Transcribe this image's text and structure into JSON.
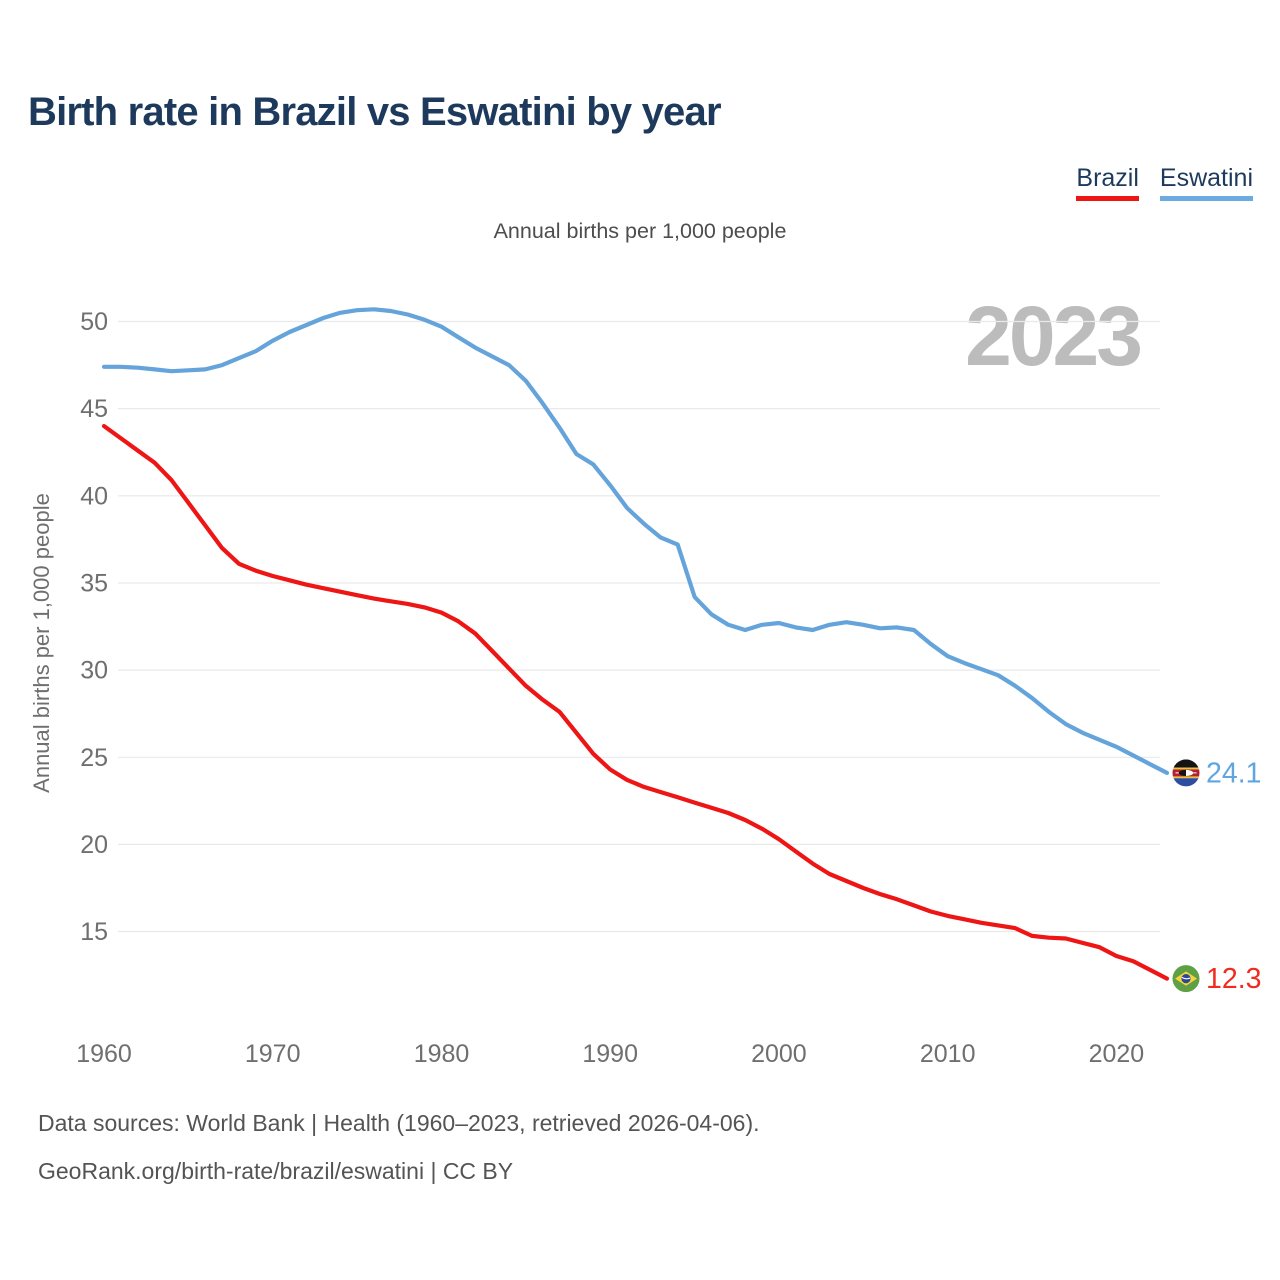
{
  "header": {
    "title": "Birth rate in Brazil vs Eswatini by year",
    "legend": [
      {
        "label": "Brazil",
        "color": "#ee1515"
      },
      {
        "label": "Eswatini",
        "color": "#6babe2"
      }
    ]
  },
  "subtitle": "Annual births per 1,000 people",
  "watermark": "2023",
  "y_axis": {
    "title": "Annual births per 1,000 people",
    "ticks": [
      15,
      20,
      25,
      30,
      35,
      40,
      45,
      50
    ]
  },
  "x_axis": {
    "ticks": [
      1960,
      1970,
      1980,
      1990,
      2000,
      2010,
      2020
    ]
  },
  "footer": {
    "line1": "Data sources: World Bank | Health (1960–2023, retrieved 2026-04-06).",
    "line2": "GeoRank.org/birth-rate/brazil/eswatini | CC BY"
  },
  "theme": {
    "title_navy": "#1d3a5c",
    "gridline": "#e9e9e9",
    "tick_text": "#6f6f6f",
    "watermark_gray": "#bcbcbc"
  },
  "flags": {
    "brazil": {
      "green": "#5fa045",
      "yellow": "#f7d33e",
      "blue": "#2b479a",
      "white": "#ffffff"
    },
    "eswatini": {
      "black": "#141414",
      "yellow": "#f0c030",
      "red": "#b22234",
      "blue": "#2d4da0",
      "white": "#ffffff"
    }
  },
  "chart_data": {
    "type": "line",
    "title": "Birth rate in Brazil vs Eswatini by year",
    "xlabel": "",
    "ylabel": "Annual births per 1,000 people",
    "xlim": [
      1960,
      2023
    ],
    "ylim": [
      12,
      52
    ],
    "grid": true,
    "legend_position": "top-right",
    "watermark": "2023",
    "x": [
      1960,
      1961,
      1962,
      1963,
      1964,
      1965,
      1966,
      1967,
      1968,
      1969,
      1970,
      1971,
      1972,
      1973,
      1974,
      1975,
      1976,
      1977,
      1978,
      1979,
      1980,
      1981,
      1982,
      1983,
      1984,
      1985,
      1986,
      1987,
      1988,
      1989,
      1990,
      1991,
      1992,
      1993,
      1994,
      1995,
      1996,
      1997,
      1998,
      1999,
      2000,
      2001,
      2002,
      2003,
      2004,
      2005,
      2006,
      2007,
      2008,
      2009,
      2010,
      2011,
      2012,
      2013,
      2014,
      2015,
      2016,
      2017,
      2018,
      2019,
      2020,
      2021,
      2022,
      2023
    ],
    "series": [
      {
        "name": "Brazil",
        "color": "#ee1515",
        "flag": "brazil",
        "end_label": "12.3",
        "end_label_color": "#f12b1e",
        "values": [
          44.0,
          43.3,
          42.6,
          41.9,
          40.9,
          39.6,
          38.3,
          37.0,
          36.1,
          35.7,
          35.4,
          35.15,
          34.9,
          34.7,
          34.5,
          34.3,
          34.1,
          33.95,
          33.8,
          33.6,
          33.3,
          32.8,
          32.1,
          31.1,
          30.1,
          29.1,
          28.3,
          27.6,
          26.4,
          25.2,
          24.3,
          23.7,
          23.3,
          23.0,
          22.7,
          22.4,
          22.1,
          21.8,
          21.4,
          20.9,
          20.3,
          19.6,
          18.9,
          18.3,
          17.9,
          17.5,
          17.15,
          16.85,
          16.5,
          16.15,
          15.9,
          15.7,
          15.5,
          15.35,
          15.2,
          14.75,
          14.65,
          14.6,
          14.35,
          14.1,
          13.6,
          13.3,
          12.8,
          12.3
        ]
      },
      {
        "name": "Eswatini",
        "color": "#64a4db",
        "flag": "eswatini",
        "end_label": "24.1",
        "end_label_color": "#5fa6e0",
        "values": [
          47.4,
          47.4,
          47.35,
          47.25,
          47.15,
          47.2,
          47.25,
          47.5,
          47.9,
          48.3,
          48.9,
          49.4,
          49.8,
          50.2,
          50.5,
          50.65,
          50.7,
          50.6,
          50.4,
          50.1,
          49.7,
          49.1,
          48.5,
          48.0,
          47.5,
          46.6,
          45.3,
          43.9,
          42.4,
          41.8,
          40.6,
          39.3,
          38.4,
          37.6,
          37.2,
          34.2,
          33.2,
          32.6,
          32.3,
          32.6,
          32.7,
          32.45,
          32.3,
          32.6,
          32.75,
          32.6,
          32.4,
          32.45,
          32.3,
          31.5,
          30.8,
          30.4,
          30.05,
          29.7,
          29.1,
          28.4,
          27.6,
          26.9,
          26.4,
          26.0,
          25.6,
          25.1,
          24.6,
          24.1
        ]
      }
    ]
  }
}
